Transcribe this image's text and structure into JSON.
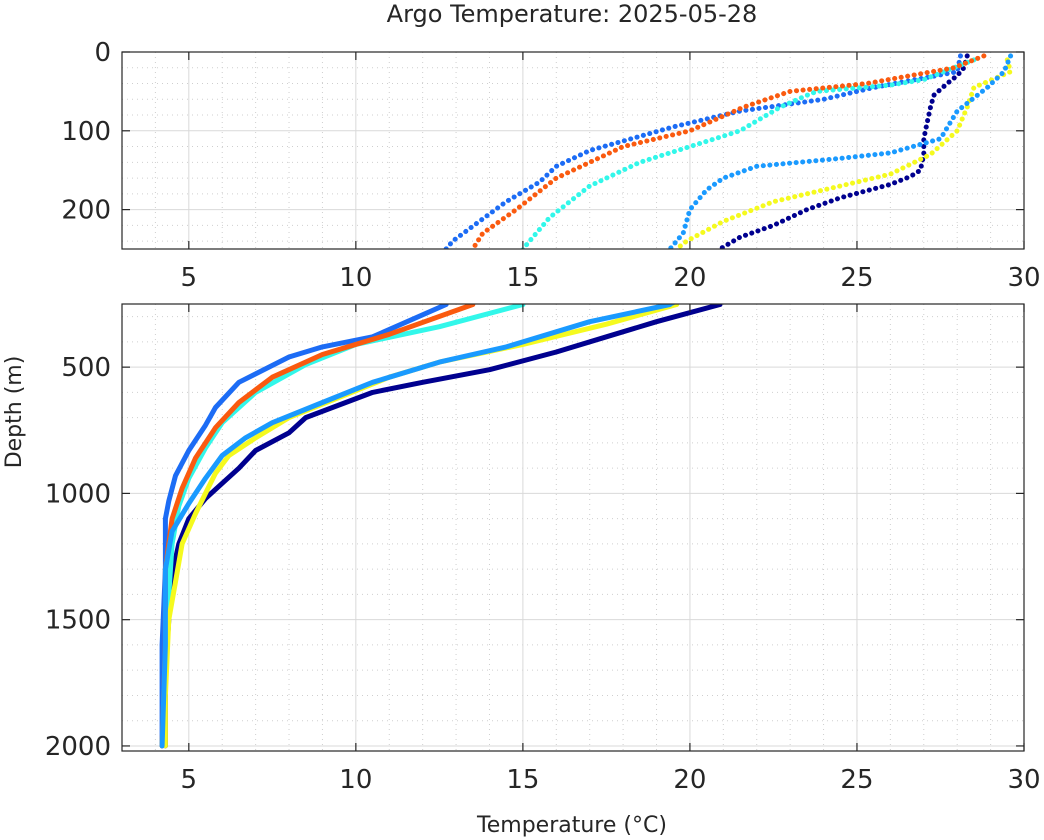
{
  "chart_data": {
    "type": "line",
    "title": "Argo Temperature: 2025-05-28",
    "xlabel": "Temperature (°C)",
    "ylabel": "Depth (m)",
    "grid": true,
    "panels": [
      {
        "xlim": [
          3,
          30
        ],
        "ylim": [
          0,
          250
        ],
        "y_reversed": true,
        "xticks": [
          5,
          10,
          15,
          20,
          25,
          30
        ],
        "yticks": [
          0,
          100,
          200
        ]
      },
      {
        "xlim": [
          3,
          30
        ],
        "ylim": [
          250,
          2020
        ],
        "y_reversed": true,
        "xticks": [
          5,
          10,
          15,
          20,
          25,
          30
        ],
        "yticks": [
          500,
          1000,
          1500,
          2000
        ]
      }
    ],
    "series": [
      {
        "color": "#00008f",
        "points": [
          [
            28.3,
            5
          ],
          [
            28.2,
            20
          ],
          [
            28.0,
            30
          ],
          [
            27.7,
            40
          ],
          [
            27.3,
            55
          ],
          [
            27.2,
            70
          ],
          [
            27.1,
            90
          ],
          [
            27.0,
            110
          ],
          [
            27.0,
            130
          ],
          [
            26.9,
            150
          ],
          [
            26.6,
            158
          ],
          [
            26.0,
            168
          ],
          [
            24.5,
            185
          ],
          [
            23.5,
            200
          ],
          [
            22.5,
            220
          ],
          [
            21.5,
            235
          ],
          [
            20.9,
            250
          ],
          [
            20.9,
            252
          ],
          [
            19.0,
            320
          ],
          [
            17.5,
            380
          ],
          [
            16.0,
            440
          ],
          [
            14.0,
            510
          ],
          [
            12.0,
            560
          ],
          [
            10.5,
            600
          ],
          [
            9.5,
            650
          ],
          [
            8.5,
            700
          ],
          [
            8.0,
            760
          ],
          [
            7.0,
            830
          ],
          [
            6.5,
            900
          ],
          [
            6.0,
            960
          ],
          [
            5.5,
            1020
          ],
          [
            5.0,
            1100
          ],
          [
            4.7,
            1200
          ],
          [
            4.5,
            1320
          ],
          [
            4.4,
            1500
          ],
          [
            4.3,
            1700
          ],
          [
            4.3,
            2000
          ]
        ]
      },
      {
        "color": "#1c6cf5",
        "points": [
          [
            28.1,
            5
          ],
          [
            28.0,
            25
          ],
          [
            25.5,
            45
          ],
          [
            24.0,
            60
          ],
          [
            21.5,
            75
          ],
          [
            20.5,
            85
          ],
          [
            19.5,
            95
          ],
          [
            17.0,
            125
          ],
          [
            16.0,
            145
          ],
          [
            15.5,
            165
          ],
          [
            14.5,
            190
          ],
          [
            13.6,
            218
          ],
          [
            12.9,
            240
          ],
          [
            12.7,
            250
          ],
          [
            12.7,
            252
          ],
          [
            10.5,
            380
          ],
          [
            9.0,
            420
          ],
          [
            8.0,
            460
          ],
          [
            6.5,
            560
          ],
          [
            5.8,
            660
          ],
          [
            5.5,
            730
          ],
          [
            5.0,
            830
          ],
          [
            4.6,
            930
          ],
          [
            4.4,
            1030
          ],
          [
            4.3,
            1100
          ],
          [
            4.3,
            1300
          ],
          [
            4.2,
            1600
          ],
          [
            4.2,
            1900
          ],
          [
            4.2,
            2000
          ]
        ]
      },
      {
        "color": "#32f7ea",
        "points": [
          [
            28.5,
            10
          ],
          [
            27.0,
            35
          ],
          [
            26.0,
            42
          ],
          [
            23.8,
            50
          ],
          [
            23.5,
            55
          ],
          [
            22.7,
            70
          ],
          [
            21.5,
            100
          ],
          [
            20.0,
            120
          ],
          [
            18.5,
            140
          ],
          [
            17.0,
            170
          ],
          [
            15.8,
            210
          ],
          [
            15.0,
            250
          ],
          [
            15.0,
            252
          ],
          [
            12.5,
            340
          ],
          [
            10.0,
            410
          ],
          [
            8.5,
            490
          ],
          [
            7.0,
            600
          ],
          [
            6.0,
            720
          ],
          [
            5.5,
            820
          ],
          [
            5.0,
            940
          ],
          [
            4.7,
            1050
          ],
          [
            4.5,
            1200
          ],
          [
            4.4,
            1400
          ],
          [
            4.3,
            1700
          ],
          [
            4.2,
            2000
          ]
        ]
      },
      {
        "color": "#fa5a0f",
        "points": [
          [
            28.8,
            5
          ],
          [
            27.9,
            20
          ],
          [
            25.3,
            40
          ],
          [
            23.0,
            50
          ],
          [
            21.6,
            70
          ],
          [
            20.0,
            100
          ],
          [
            18.0,
            120
          ],
          [
            16.0,
            160
          ],
          [
            14.8,
            200
          ],
          [
            13.8,
            230
          ],
          [
            13.5,
            250
          ],
          [
            13.5,
            252
          ],
          [
            11.0,
            370
          ],
          [
            9.0,
            450
          ],
          [
            7.5,
            540
          ],
          [
            6.5,
            640
          ],
          [
            5.8,
            740
          ],
          [
            5.2,
            860
          ],
          [
            4.8,
            980
          ],
          [
            4.5,
            1100
          ],
          [
            4.3,
            1300
          ],
          [
            4.3,
            1600
          ],
          [
            4.2,
            2000
          ]
        ]
      },
      {
        "color": "#f5fa1e",
        "points": [
          [
            29.5,
            10
          ],
          [
            29.6,
            25
          ],
          [
            28.5,
            45
          ],
          [
            28.3,
            70
          ],
          [
            28.0,
            100
          ],
          [
            27.2,
            130
          ],
          [
            26.0,
            155
          ],
          [
            24.5,
            170
          ],
          [
            22.5,
            190
          ],
          [
            21.0,
            215
          ],
          [
            19.9,
            240
          ],
          [
            19.6,
            250
          ],
          [
            19.6,
            252
          ],
          [
            17.5,
            330
          ],
          [
            15.0,
            410
          ],
          [
            12.5,
            480
          ],
          [
            11.0,
            540
          ],
          [
            9.5,
            620
          ],
          [
            8.0,
            700
          ],
          [
            7.0,
            780
          ],
          [
            6.2,
            850
          ],
          [
            5.8,
            920
          ],
          [
            5.5,
            1000
          ],
          [
            5.2,
            1080
          ],
          [
            4.8,
            1200
          ],
          [
            4.6,
            1350
          ],
          [
            4.4,
            1500
          ],
          [
            4.3,
            1800
          ],
          [
            4.3,
            2000
          ]
        ]
      },
      {
        "color": "#1a9aff",
        "points": [
          [
            29.6,
            5
          ],
          [
            29.4,
            25
          ],
          [
            28.9,
            45
          ],
          [
            28.0,
            75
          ],
          [
            27.5,
            110
          ],
          [
            26.0,
            128
          ],
          [
            24.5,
            135
          ],
          [
            22.0,
            145
          ],
          [
            21.0,
            160
          ],
          [
            20.5,
            175
          ],
          [
            20.0,
            200
          ],
          [
            19.8,
            230
          ],
          [
            19.5,
            245
          ],
          [
            19.4,
            250
          ],
          [
            19.4,
            252
          ],
          [
            17.0,
            320
          ],
          [
            14.5,
            420
          ],
          [
            12.5,
            480
          ],
          [
            10.5,
            560
          ],
          [
            9.0,
            640
          ],
          [
            7.5,
            720
          ],
          [
            6.7,
            780
          ],
          [
            6.0,
            850
          ],
          [
            5.5,
            940
          ],
          [
            5.0,
            1040
          ],
          [
            4.5,
            1150
          ],
          [
            4.3,
            1300
          ],
          [
            4.3,
            1600
          ],
          [
            4.2,
            2000
          ]
        ]
      }
    ]
  }
}
